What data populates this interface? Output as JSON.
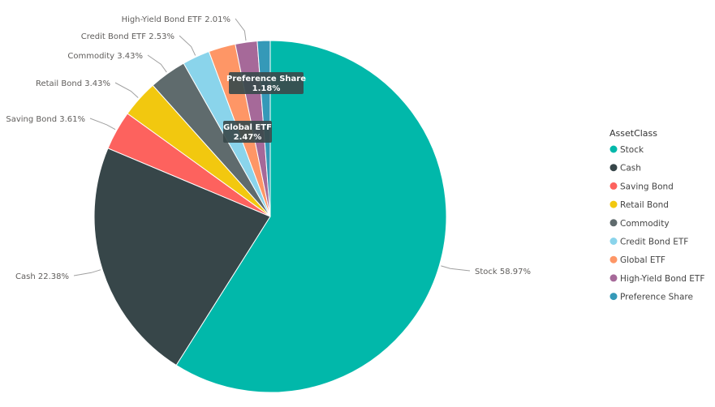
{
  "chart_data": {
    "type": "pie",
    "title": "",
    "legend_title": "AssetClass",
    "legend_position": "right",
    "slices": [
      {
        "label": "Stock",
        "value": 58.97,
        "color": "#01b8aa",
        "display": "Stock 58.97%"
      },
      {
        "label": "Cash",
        "value": 22.38,
        "color": "#374649",
        "display": "Cash 22.38%"
      },
      {
        "label": "Saving Bond",
        "value": 3.61,
        "color": "#fd625e",
        "display": "Saving Bond 3.61%"
      },
      {
        "label": "Retail Bond",
        "value": 3.43,
        "color": "#f2c80f",
        "display": "Retail Bond 3.43%"
      },
      {
        "label": "Commodity",
        "value": 3.43,
        "color": "#5f6b6d",
        "display": "Commodity 3.43%"
      },
      {
        "label": "Credit Bond ETF",
        "value": 2.53,
        "color": "#8ad4eb",
        "display": "Credit Bond ETF 2.53%"
      },
      {
        "label": "Global ETF",
        "value": 2.47,
        "color": "#fe9666",
        "display": "Global ETF",
        "display_value": "2.47%"
      },
      {
        "label": "High-Yield Bond ETF",
        "value": 2.01,
        "color": "#a66999",
        "display": "High-Yield Bond ETF 2.01%"
      },
      {
        "label": "Preference Share",
        "value": 1.18,
        "color": "#3599b8",
        "display": "Preference Share",
        "display_value": "1.18%"
      }
    ]
  }
}
